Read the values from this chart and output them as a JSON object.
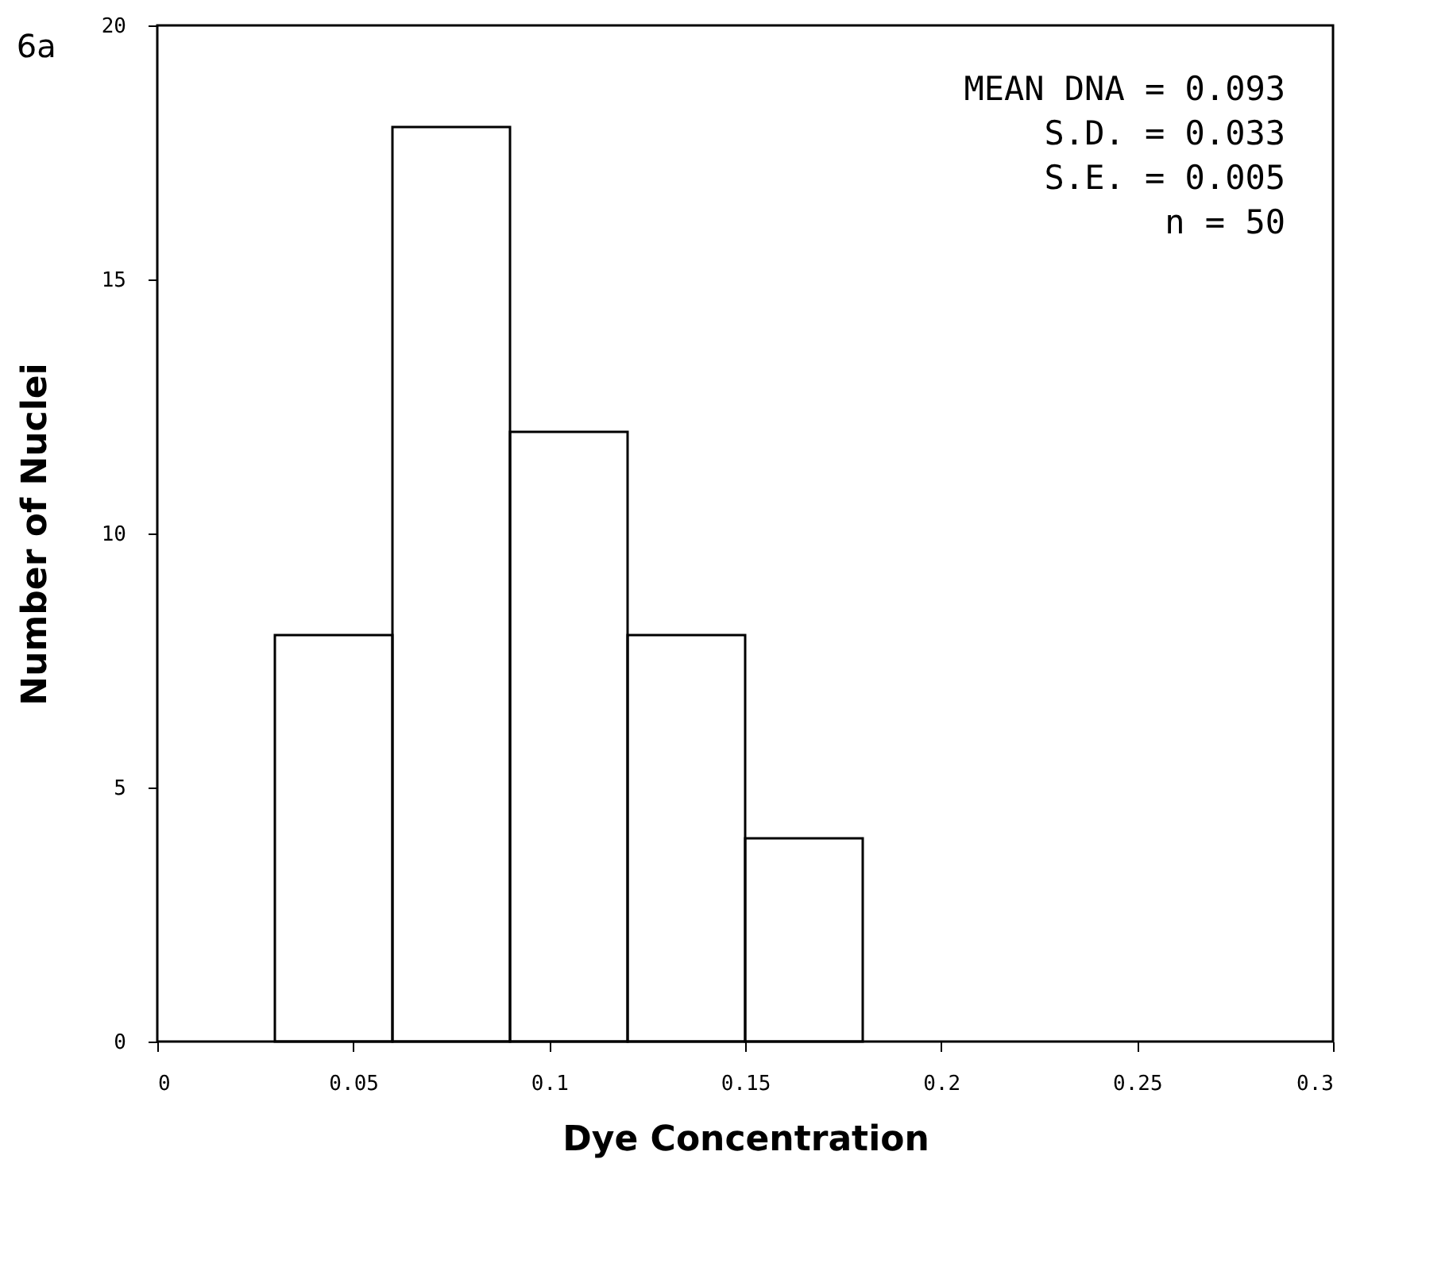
{
  "chart_data": {
    "type": "histogram",
    "title": "6a",
    "xlabel": "Dye Concentration",
    "ylabel": "Number of Nuclei",
    "bins": [
      0.03,
      0.06,
      0.09,
      0.12,
      0.15,
      0.18
    ],
    "values": [
      8,
      18,
      12,
      8,
      4
    ],
    "color": "#000000",
    "xlim": [
      0,
      0.3
    ],
    "xticks": [
      0,
      0.05,
      0.1,
      0.15,
      0.2,
      0.25,
      0.3
    ],
    "ylim": [
      0,
      20
    ],
    "yticks": [
      0,
      5,
      10,
      15,
      20
    ],
    "grid": false,
    "annotations": [
      "MEAN DNA = 0.093",
      "S.D. = 0.033",
      "S.E. = 0.005",
      "n = 50"
    ]
  }
}
